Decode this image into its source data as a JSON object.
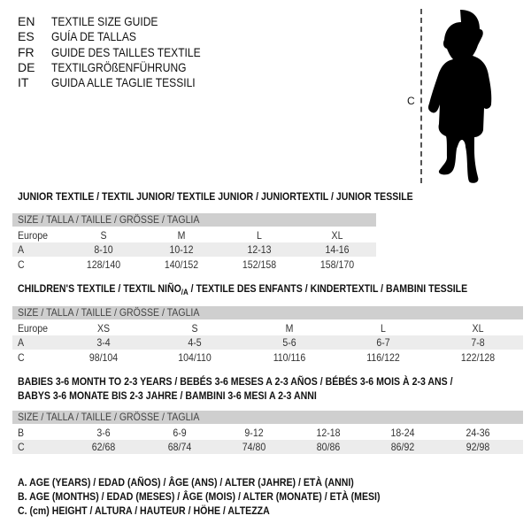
{
  "languages": [
    {
      "code": "EN",
      "title": "TEXTILE SIZE GUIDE"
    },
    {
      "code": "ES",
      "title": "GUÍA DE TALLAS"
    },
    {
      "code": "FR",
      "title": "GUIDE DES TAILLES TEXTILE"
    },
    {
      "code": "DE",
      "title": "TEXTILGRÖßENFÜHRUNG"
    },
    {
      "code": "IT",
      "title": "GUIDA ALLE TAGLIE TESSILI"
    }
  ],
  "figure": {
    "height_label": "C"
  },
  "size_header": "SIZE / TALLA / TAILLE / GRÖSSE / TAGLIA",
  "junior": {
    "title": "JUNIOR TEXTILE / TEXTIL JUNIOR/ TEXTILE JUNIOR / JUNIORTEXTIL / JUNIOR TESSILE",
    "rows": [
      {
        "label": "Europe",
        "values": [
          "S",
          "M",
          "L",
          "XL"
        ]
      },
      {
        "label": "A",
        "values": [
          "8-10",
          "10-12",
          "12-13",
          "14-16"
        ]
      },
      {
        "label": "C",
        "values": [
          "128/140",
          "140/152",
          "152/158",
          "158/170"
        ]
      }
    ]
  },
  "children": {
    "title_pre": "CHILDREN'S TEXTILE / TEXTIL NIÑO",
    "title_sub": "/A",
    "title_post": " / TEXTILE DES ENFANTS / KINDERTEXTIL / BAMBINI TESSILE",
    "rows": [
      {
        "label": "Europe",
        "values": [
          "XS",
          "S",
          "M",
          "L",
          "XL"
        ]
      },
      {
        "label": "A",
        "values": [
          "3-4",
          "4-5",
          "5-6",
          "6-7",
          "7-8"
        ]
      },
      {
        "label": "C",
        "values": [
          "98/104",
          "104/110",
          "110/116",
          "116/122",
          "122/128"
        ]
      }
    ]
  },
  "babies": {
    "title_line1": "BABIES 3-6 MONTH TO 2-3 YEARS / BEBÉS 3-6 MESES A 2-3 AÑOS / BÉBÉS 3-6 MOIS À 2-3 ANS /",
    "title_line2": "BABYS 3-6 MONATE BIS 2-3 JAHRE / BAMBINI 3-6 MESI A 2-3 ANNI",
    "rows": [
      {
        "label": "B",
        "values": [
          "3-6",
          "6-9",
          "9-12",
          "12-18",
          "18-24",
          "24-36"
        ]
      },
      {
        "label": "C",
        "values": [
          "62/68",
          "68/74",
          "74/80",
          "80/86",
          "86/92",
          "92/98"
        ]
      }
    ]
  },
  "legend": [
    "A. AGE (YEARS) / EDAD (AÑOS) / ÂGE (ANS) / ALTER (JAHRE) / ETÀ (ANNI)",
    "B. AGE (MONTHS) / EDAD (MESES) / ÂGE (MOIS) / ALTER (MONATE) / ETÀ (MESI)",
    "C. (cm) HEIGHT / ALTURA / HAUTEUR / HÖHE / ALTEZZA"
  ]
}
